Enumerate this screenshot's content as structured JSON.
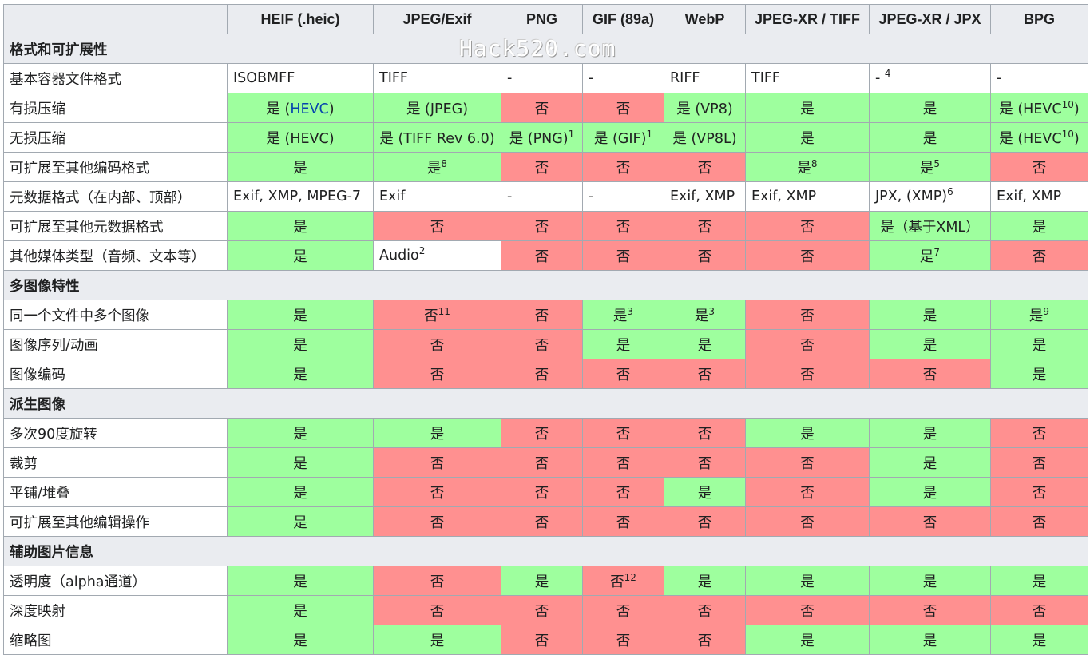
{
  "columns": [
    "HEIF (.heic)",
    "JPEG/Exif",
    "PNG",
    "GIF (89a)",
    "WebP",
    "JPEG-XR / TIFF",
    "JPEG-XR / JPX",
    "BPG"
  ],
  "watermark": "Hack520.com",
  "sections": [
    {
      "title": "格式和可扩展性",
      "rows": [
        {
          "label": "基本容器文件格式",
          "cells": [
            {
              "t": "ISOBMFF",
              "s": "plain"
            },
            {
              "t": "TIFF",
              "s": "plain"
            },
            {
              "t": "-",
              "s": "plain"
            },
            {
              "t": "-",
              "s": "plain"
            },
            {
              "t": "RIFF",
              "s": "plain"
            },
            {
              "t": "TIFF",
              "s": "plain"
            },
            {
              "t": "- ",
              "sup": "4",
              "s": "plain"
            },
            {
              "t": "-",
              "s": "plain"
            }
          ]
        },
        {
          "label": "有损压缩",
          "cells": [
            {
              "t": "是 (",
              "link": "HEVC",
              "after": ")",
              "s": "yes"
            },
            {
              "t": "是 (JPEG)",
              "s": "yes"
            },
            {
              "t": "否",
              "s": "no"
            },
            {
              "t": "否",
              "s": "no"
            },
            {
              "t": "是 (VP8)",
              "s": "yes"
            },
            {
              "t": "是",
              "s": "yes"
            },
            {
              "t": "是",
              "s": "yes"
            },
            {
              "t": "是 (HEVC",
              "sup": "10",
              "after": ")",
              "s": "yes"
            }
          ]
        },
        {
          "label": "无损压缩",
          "cells": [
            {
              "t": "是 (HEVC)",
              "s": "yes"
            },
            {
              "t": "是 (TIFF Rev 6.0)",
              "s": "yes"
            },
            {
              "t": "是 (PNG)",
              "sup": "1",
              "s": "yes"
            },
            {
              "t": "是 (GIF)",
              "sup": "1",
              "s": "yes"
            },
            {
              "t": "是 (VP8L)",
              "s": "yes"
            },
            {
              "t": "是",
              "s": "yes"
            },
            {
              "t": "是",
              "s": "yes"
            },
            {
              "t": "是 (HEVC",
              "sup": "10",
              "after": ")",
              "s": "yes"
            }
          ]
        },
        {
          "label": "可扩展至其他编码格式",
          "cells": [
            {
              "t": "是",
              "s": "yes"
            },
            {
              "t": "是",
              "sup": "8",
              "s": "yes"
            },
            {
              "t": "否",
              "s": "no"
            },
            {
              "t": "否",
              "s": "no"
            },
            {
              "t": "否",
              "s": "no"
            },
            {
              "t": "是",
              "sup": "8",
              "s": "yes"
            },
            {
              "t": "是",
              "sup": "5",
              "s": "yes"
            },
            {
              "t": "否",
              "s": "no"
            }
          ]
        },
        {
          "label": "元数据格式（在内部、顶部）",
          "cells": [
            {
              "t": "Exif, XMP, MPEG-7",
              "s": "plain"
            },
            {
              "t": "Exif",
              "s": "plain"
            },
            {
              "t": "-",
              "s": "plain"
            },
            {
              "t": "-",
              "s": "plain"
            },
            {
              "t": "Exif, XMP",
              "s": "plain"
            },
            {
              "t": "Exif, XMP",
              "s": "plain"
            },
            {
              "t": "JPX, (XMP)",
              "sup": "6",
              "s": "plain"
            },
            {
              "t": "Exif, XMP",
              "s": "plain"
            }
          ]
        },
        {
          "label": "可扩展至其他元数据格式",
          "cells": [
            {
              "t": "是",
              "s": "yes"
            },
            {
              "t": "否",
              "s": "no"
            },
            {
              "t": "否",
              "s": "no"
            },
            {
              "t": "否",
              "s": "no"
            },
            {
              "t": "否",
              "s": "no"
            },
            {
              "t": "否",
              "s": "no"
            },
            {
              "t": "是（基于XML）",
              "s": "yes"
            },
            {
              "t": "是",
              "s": "yes"
            }
          ]
        },
        {
          "label": "其他媒体类型（音频、文本等）",
          "cells": [
            {
              "t": "是",
              "s": "yes"
            },
            {
              "t": "Audio",
              "sup": "2",
              "s": "plain white"
            },
            {
              "t": "否",
              "s": "no"
            },
            {
              "t": "否",
              "s": "no"
            },
            {
              "t": "否",
              "s": "no"
            },
            {
              "t": "否",
              "s": "no"
            },
            {
              "t": "是",
              "sup": "7",
              "s": "yes"
            },
            {
              "t": "否",
              "s": "no"
            }
          ]
        }
      ]
    },
    {
      "title": "多图像特性",
      "rows": [
        {
          "label": "同一个文件中多个图像",
          "cells": [
            {
              "t": "是",
              "s": "yes"
            },
            {
              "t": "否",
              "sup": "11",
              "s": "no"
            },
            {
              "t": "否",
              "s": "no"
            },
            {
              "t": "是",
              "sup": "3",
              "s": "yes"
            },
            {
              "t": "是",
              "sup": "3",
              "s": "yes"
            },
            {
              "t": "否",
              "s": "no"
            },
            {
              "t": "是",
              "s": "yes"
            },
            {
              "t": "是",
              "sup": "9",
              "s": "yes"
            }
          ]
        },
        {
          "label": "图像序列/动画",
          "cells": [
            {
              "t": "是",
              "s": "yes"
            },
            {
              "t": "否",
              "s": "no"
            },
            {
              "t": "否",
              "s": "no"
            },
            {
              "t": "是",
              "s": "yes"
            },
            {
              "t": "是",
              "s": "yes"
            },
            {
              "t": "否",
              "s": "no"
            },
            {
              "t": "是",
              "s": "yes"
            },
            {
              "t": "是",
              "s": "yes"
            }
          ]
        },
        {
          "label": "图像编码",
          "cells": [
            {
              "t": "是",
              "s": "yes"
            },
            {
              "t": "否",
              "s": "no"
            },
            {
              "t": "否",
              "s": "no"
            },
            {
              "t": "否",
              "s": "no"
            },
            {
              "t": "否",
              "s": "no"
            },
            {
              "t": "否",
              "s": "no"
            },
            {
              "t": "否",
              "s": "no"
            },
            {
              "t": "是",
              "s": "yes"
            }
          ]
        }
      ]
    },
    {
      "title": "派生图像",
      "rows": [
        {
          "label": "多次90度旋转",
          "cells": [
            {
              "t": "是",
              "s": "yes"
            },
            {
              "t": "是",
              "s": "yes"
            },
            {
              "t": "否",
              "s": "no"
            },
            {
              "t": "否",
              "s": "no"
            },
            {
              "t": "否",
              "s": "no"
            },
            {
              "t": "是",
              "s": "yes"
            },
            {
              "t": "是",
              "s": "yes"
            },
            {
              "t": "否",
              "s": "no"
            }
          ]
        },
        {
          "label": "裁剪",
          "cells": [
            {
              "t": "是",
              "s": "yes"
            },
            {
              "t": "否",
              "s": "no"
            },
            {
              "t": "否",
              "s": "no"
            },
            {
              "t": "否",
              "s": "no"
            },
            {
              "t": "否",
              "s": "no"
            },
            {
              "t": "否",
              "s": "no"
            },
            {
              "t": "是",
              "s": "yes"
            },
            {
              "t": "否",
              "s": "no"
            }
          ]
        },
        {
          "label": "平铺/堆叠",
          "cells": [
            {
              "t": "是",
              "s": "yes"
            },
            {
              "t": "否",
              "s": "no"
            },
            {
              "t": "否",
              "s": "no"
            },
            {
              "t": "否",
              "s": "no"
            },
            {
              "t": "是",
              "s": "yes"
            },
            {
              "t": "否",
              "s": "no"
            },
            {
              "t": "是",
              "s": "yes"
            },
            {
              "t": "否",
              "s": "no"
            }
          ]
        },
        {
          "label": "可扩展至其他编辑操作",
          "cells": [
            {
              "t": "是",
              "s": "yes"
            },
            {
              "t": "否",
              "s": "no"
            },
            {
              "t": "否",
              "s": "no"
            },
            {
              "t": "否",
              "s": "no"
            },
            {
              "t": "否",
              "s": "no"
            },
            {
              "t": "否",
              "s": "no"
            },
            {
              "t": "否",
              "s": "no"
            },
            {
              "t": "否",
              "s": "no"
            }
          ]
        }
      ]
    },
    {
      "title": "辅助图片信息",
      "rows": [
        {
          "label": "透明度（alpha通道）",
          "cells": [
            {
              "t": "是",
              "s": "yes"
            },
            {
              "t": "否",
              "s": "no"
            },
            {
              "t": "是",
              "s": "yes"
            },
            {
              "t": "否",
              "sup": "12",
              "s": "no"
            },
            {
              "t": "是",
              "s": "yes"
            },
            {
              "t": "是",
              "s": "yes"
            },
            {
              "t": "是",
              "s": "yes"
            },
            {
              "t": "是",
              "s": "yes"
            }
          ]
        },
        {
          "label": "深度映射",
          "cells": [
            {
              "t": "是",
              "s": "yes"
            },
            {
              "t": "否",
              "s": "no"
            },
            {
              "t": "否",
              "s": "no"
            },
            {
              "t": "否",
              "s": "no"
            },
            {
              "t": "否",
              "s": "no"
            },
            {
              "t": "否",
              "s": "no"
            },
            {
              "t": "否",
              "s": "no"
            },
            {
              "t": "否",
              "s": "no"
            }
          ]
        },
        {
          "label": "缩略图",
          "cells": [
            {
              "t": "是",
              "s": "yes"
            },
            {
              "t": "是",
              "s": "yes"
            },
            {
              "t": "否",
              "s": "no"
            },
            {
              "t": "否",
              "s": "no"
            },
            {
              "t": "否",
              "s": "no"
            },
            {
              "t": "是",
              "s": "yes"
            },
            {
              "t": "是",
              "s": "yes"
            },
            {
              "t": "是",
              "s": "yes"
            }
          ]
        }
      ]
    }
  ],
  "colors": {
    "yes": "#9eff9e",
    "no": "#ff9090",
    "header": "#eaecf0",
    "link": "#0645ad"
  }
}
